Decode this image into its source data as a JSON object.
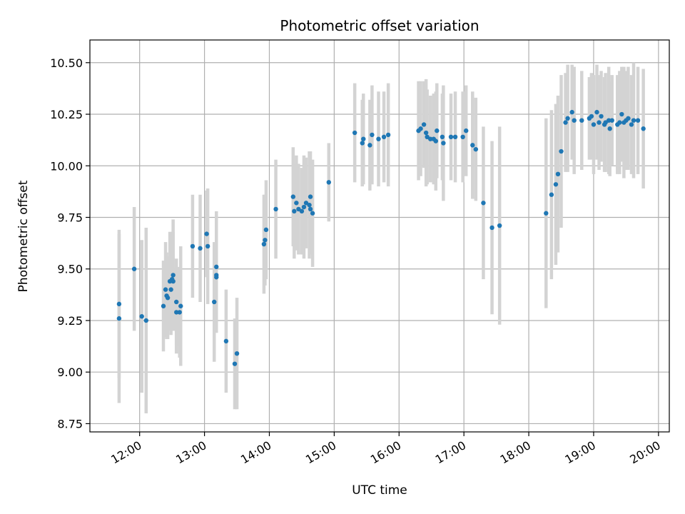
{
  "chart_data": {
    "type": "scatter",
    "title": "Photometric offset variation",
    "xlabel": "UTC time",
    "ylabel": "Photometric offset",
    "x_unit": "UTC time (HH:MM)",
    "xlim": [
      "11:14",
      "20:10"
    ],
    "ylim": [
      8.71,
      10.61
    ],
    "xticks": [
      "12:00",
      "13:00",
      "14:00",
      "15:00",
      "16:00",
      "17:00",
      "18:00",
      "19:00",
      "20:00"
    ],
    "yticks": [
      "8.75",
      "9.00",
      "9.25",
      "9.50",
      "9.75",
      "10.00",
      "10.25",
      "10.50"
    ],
    "grid": true,
    "marker_color": "#1f77b4",
    "errorbar_color": "#d3d3d3",
    "series": [
      {
        "points": [
          {
            "x": "11:41",
            "y": 9.26,
            "err": 0.41
          },
          {
            "x": "11:41",
            "y": 9.33,
            "err": 0.36
          },
          {
            "x": "11:55",
            "y": 9.5,
            "err": 0.3
          },
          {
            "x": "12:02",
            "y": 9.27,
            "err": 0.37
          },
          {
            "x": "12:06",
            "y": 9.25,
            "err": 0.45
          },
          {
            "x": "12:22",
            "y": 9.32,
            "err": 0.22
          },
          {
            "x": "12:24",
            "y": 9.4,
            "err": 0.23
          },
          {
            "x": "12:25",
            "y": 9.37,
            "err": 0.21
          },
          {
            "x": "12:26",
            "y": 9.36,
            "err": 0.2
          },
          {
            "x": "12:28",
            "y": 9.44,
            "err": 0.24
          },
          {
            "x": "12:29",
            "y": 9.4,
            "err": 0.22
          },
          {
            "x": "12:30",
            "y": 9.45,
            "err": 0.23
          },
          {
            "x": "12:31",
            "y": 9.47,
            "err": 0.27
          },
          {
            "x": "12:31",
            "y": 9.44,
            "err": 0.24
          },
          {
            "x": "12:34",
            "y": 9.34,
            "err": 0.21
          },
          {
            "x": "12:34",
            "y": 9.29,
            "err": 0.2
          },
          {
            "x": "12:37",
            "y": 9.29,
            "err": 0.22
          },
          {
            "x": "12:38",
            "y": 9.32,
            "err": 0.29
          },
          {
            "x": "12:49",
            "y": 9.61,
            "err": 0.25
          },
          {
            "x": "12:56",
            "y": 9.6,
            "err": 0.26
          },
          {
            "x": "13:02",
            "y": 9.67,
            "err": 0.21
          },
          {
            "x": "13:03",
            "y": 9.61,
            "err": 0.28
          },
          {
            "x": "13:09",
            "y": 9.34,
            "err": 0.29
          },
          {
            "x": "13:11",
            "y": 9.47,
            "err": 0.26
          },
          {
            "x": "13:11",
            "y": 9.46,
            "err": 0.27
          },
          {
            "x": "13:11",
            "y": 9.51,
            "err": 0.27
          },
          {
            "x": "13:20",
            "y": 9.15,
            "err": 0.25
          },
          {
            "x": "13:28",
            "y": 9.04,
            "err": 0.22
          },
          {
            "x": "13:30",
            "y": 9.09,
            "err": 0.27
          },
          {
            "x": "13:55",
            "y": 9.62,
            "err": 0.24
          },
          {
            "x": "13:56",
            "y": 9.64,
            "err": 0.22
          },
          {
            "x": "13:57",
            "y": 9.69,
            "err": 0.24
          },
          {
            "x": "14:06",
            "y": 9.79,
            "err": 0.24
          },
          {
            "x": "14:22",
            "y": 9.85,
            "err": 0.24
          },
          {
            "x": "14:23",
            "y": 9.78,
            "err": 0.23
          },
          {
            "x": "14:25",
            "y": 9.82,
            "err": 0.23
          },
          {
            "x": "14:27",
            "y": 9.79,
            "err": 0.22
          },
          {
            "x": "14:30",
            "y": 9.78,
            "err": 0.21
          },
          {
            "x": "14:32",
            "y": 9.8,
            "err": 0.25
          },
          {
            "x": "14:34",
            "y": 9.82,
            "err": 0.22
          },
          {
            "x": "14:37",
            "y": 9.81,
            "err": 0.26
          },
          {
            "x": "14:38",
            "y": 9.85,
            "err": 0.22
          },
          {
            "x": "14:38",
            "y": 9.79,
            "err": 0.22
          },
          {
            "x": "14:40",
            "y": 9.77,
            "err": 0.26
          },
          {
            "x": "14:55",
            "y": 9.92,
            "err": 0.19
          },
          {
            "x": "15:19",
            "y": 10.16,
            "err": 0.24
          },
          {
            "x": "15:26",
            "y": 10.11,
            "err": 0.21
          },
          {
            "x": "15:27",
            "y": 10.13,
            "err": 0.22
          },
          {
            "x": "15:33",
            "y": 10.1,
            "err": 0.22
          },
          {
            "x": "15:35",
            "y": 10.15,
            "err": 0.24
          },
          {
            "x": "15:41",
            "y": 10.13,
            "err": 0.23
          },
          {
            "x": "15:46",
            "y": 10.14,
            "err": 0.22
          },
          {
            "x": "15:50",
            "y": 10.15,
            "err": 0.25
          },
          {
            "x": "16:18",
            "y": 10.17,
            "err": 0.24
          },
          {
            "x": "16:20",
            "y": 10.18,
            "err": 0.23
          },
          {
            "x": "16:23",
            "y": 10.2,
            "err": 0.21
          },
          {
            "x": "16:25",
            "y": 10.16,
            "err": 0.26
          },
          {
            "x": "16:26",
            "y": 10.14,
            "err": 0.23
          },
          {
            "x": "16:29",
            "y": 10.13,
            "err": 0.21
          },
          {
            "x": "16:32",
            "y": 10.13,
            "err": 0.22
          },
          {
            "x": "16:34",
            "y": 10.12,
            "err": 0.24
          },
          {
            "x": "16:35",
            "y": 10.17,
            "err": 0.23
          },
          {
            "x": "16:40",
            "y": 10.14,
            "err": 0.21
          },
          {
            "x": "16:41",
            "y": 10.11,
            "err": 0.28
          },
          {
            "x": "16:48",
            "y": 10.14,
            "err": 0.21
          },
          {
            "x": "16:52",
            "y": 10.14,
            "err": 0.22
          },
          {
            "x": "16:59",
            "y": 10.14,
            "err": 0.22
          },
          {
            "x": "17:02",
            "y": 10.17,
            "err": 0.22
          },
          {
            "x": "17:08",
            "y": 10.1,
            "err": 0.26
          },
          {
            "x": "17:11",
            "y": 10.08,
            "err": 0.25
          },
          {
            "x": "17:18",
            "y": 9.82,
            "err": 0.37
          },
          {
            "x": "17:26",
            "y": 9.7,
            "err": 0.42
          },
          {
            "x": "17:33",
            "y": 9.71,
            "err": 0.48
          },
          {
            "x": "18:16",
            "y": 9.77,
            "err": 0.46
          },
          {
            "x": "18:21",
            "y": 9.86,
            "err": 0.41
          },
          {
            "x": "18:25",
            "y": 9.91,
            "err": 0.39
          },
          {
            "x": "18:27",
            "y": 9.96,
            "err": 0.38
          },
          {
            "x": "18:30",
            "y": 10.07,
            "err": 0.37
          },
          {
            "x": "18:34",
            "y": 10.21,
            "err": 0.24
          },
          {
            "x": "18:36",
            "y": 10.23,
            "err": 0.26
          },
          {
            "x": "18:40",
            "y": 10.26,
            "err": 0.23
          },
          {
            "x": "18:42",
            "y": 10.22,
            "err": 0.26
          },
          {
            "x": "18:49",
            "y": 10.22,
            "err": 0.24
          },
          {
            "x": "18:56",
            "y": 10.23,
            "err": 0.2
          },
          {
            "x": "18:58",
            "y": 10.24,
            "err": 0.21
          },
          {
            "x": "19:00",
            "y": 10.2,
            "err": 0.24
          },
          {
            "x": "19:03",
            "y": 10.26,
            "err": 0.23
          },
          {
            "x": "19:05",
            "y": 10.21,
            "err": 0.23
          },
          {
            "x": "19:07",
            "y": 10.24,
            "err": 0.22
          },
          {
            "x": "19:10",
            "y": 10.2,
            "err": 0.23
          },
          {
            "x": "19:11",
            "y": 10.21,
            "err": 0.24
          },
          {
            "x": "19:14",
            "y": 10.22,
            "err": 0.26
          },
          {
            "x": "19:15",
            "y": 10.18,
            "err": 0.23
          },
          {
            "x": "19:17",
            "y": 10.22,
            "err": 0.22
          },
          {
            "x": "19:22",
            "y": 10.2,
            "err": 0.24
          },
          {
            "x": "19:24",
            "y": 10.21,
            "err": 0.25
          },
          {
            "x": "19:26",
            "y": 10.25,
            "err": 0.23
          },
          {
            "x": "19:28",
            "y": 10.21,
            "err": 0.27
          },
          {
            "x": "19:30",
            "y": 10.22,
            "err": 0.24
          },
          {
            "x": "19:32",
            "y": 10.23,
            "err": 0.25
          },
          {
            "x": "19:35",
            "y": 10.2,
            "err": 0.24
          },
          {
            "x": "19:37",
            "y": 10.22,
            "err": 0.28
          },
          {
            "x": "19:41",
            "y": 10.22,
            "err": 0.26
          },
          {
            "x": "19:46",
            "y": 10.18,
            "err": 0.29
          }
        ]
      }
    ]
  }
}
